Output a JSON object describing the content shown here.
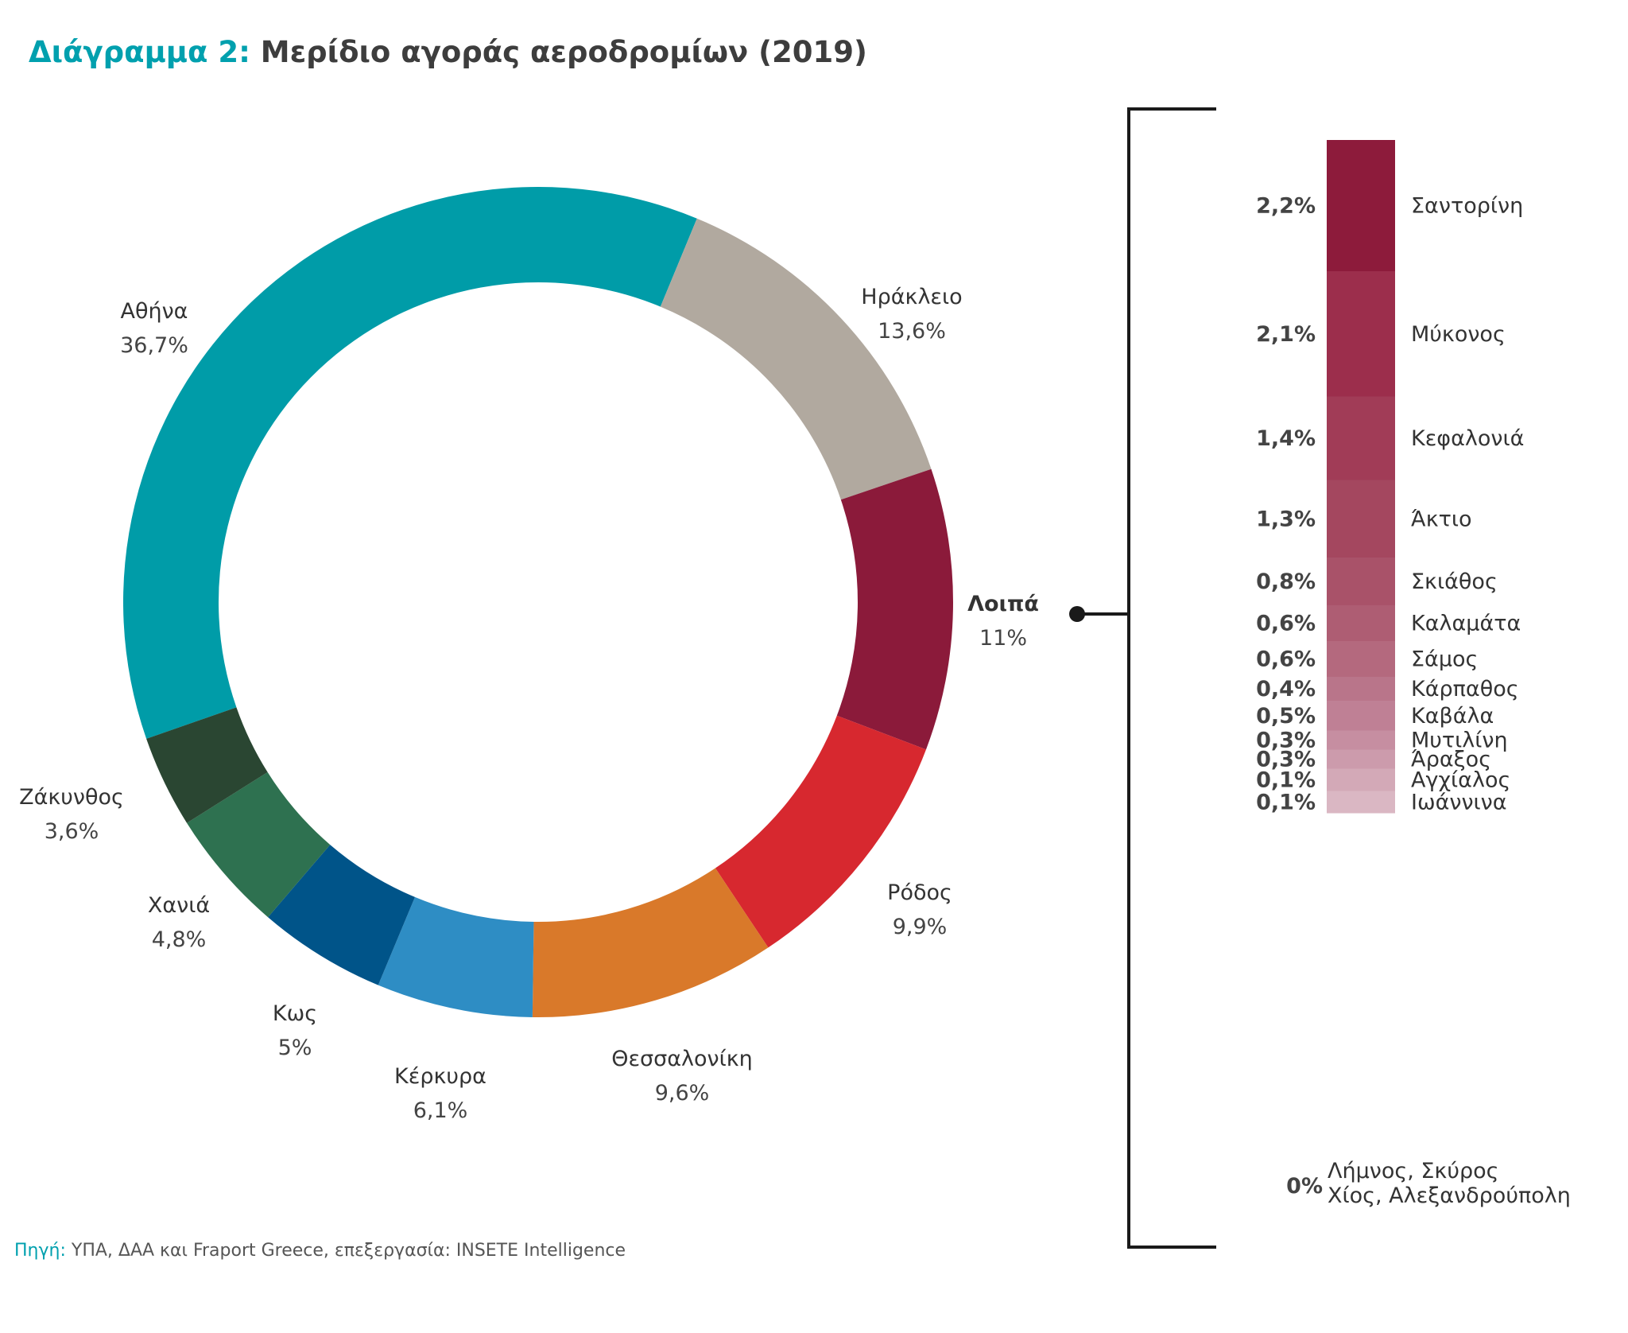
{
  "title_lead": "Διάγραμμα 2:",
  "title_main": "Μερίδιο αγοράς αεροδρομίων (2019)",
  "source_lead": "Πηγή:",
  "source_text": "ΥΠΑ, ΔΑΑ και Fraport Greece, επεξεργασία: INSETE Intelligence",
  "chart_data": [
    {
      "type": "pie",
      "title": "Μερίδιο αγοράς αεροδρομίων (2019)",
      "slices": [
        {
          "label": "Αθήνα",
          "value_label": "36,7%",
          "value": 36.7,
          "color": "#009ca8"
        },
        {
          "label": "Ηράκλειο",
          "value_label": "13,6%",
          "value": 13.6,
          "color": "#b1a99f"
        },
        {
          "label": "Λοιπά",
          "value_label": "11%",
          "value": 11,
          "color": "#8b1a3a",
          "bold": true
        },
        {
          "label": "Ρόδος",
          "value_label": "9,9%",
          "value": 9.9,
          "color": "#d7282f"
        },
        {
          "label": "Θεσσαλονίκη",
          "value_label": "9,6%",
          "value": 9.6,
          "color": "#d9792a"
        },
        {
          "label": "Κέρκυρα",
          "value_label": "6,1%",
          "value": 6.1,
          "color": "#2e8dc4"
        },
        {
          "label": "Κως",
          "value_label": "5%",
          "value": 5,
          "color": "#005489"
        },
        {
          "label": "Χανιά",
          "value_label": "4,8%",
          "value": 4.8,
          "color": "#2e7150"
        },
        {
          "label": "Ζάκυνθος",
          "value_label": "3,6%",
          "value": 3.6,
          "color": "#2a4632"
        }
      ]
    },
    {
      "type": "bar",
      "stacked": true,
      "title": "Λοιπά",
      "segments": [
        {
          "label": "Σαντορίνη",
          "value_label": "2,2%",
          "value": 2.2,
          "color": "#8d1b3b"
        },
        {
          "label": "Μύκονος",
          "value_label": "2,1%",
          "value": 2.1,
          "color": "#9c2e4c"
        },
        {
          "label": "Κεφαλονιά",
          "value_label": "1,4%",
          "value": 1.4,
          "color": "#a13c57"
        },
        {
          "label": "Άκτιο",
          "value_label": "1,3%",
          "value": 1.3,
          "color": "#a4475f"
        },
        {
          "label": "Σκιάθος",
          "value_label": "0,8%",
          "value": 0.8,
          "color": "#a95269"
        },
        {
          "label": "Καλαμάτα",
          "value_label": "0,6%",
          "value": 0.6,
          "color": "#ae5d73"
        },
        {
          "label": "Σάμος",
          "value_label": "0,6%",
          "value": 0.6,
          "color": "#b4697e"
        },
        {
          "label": "Κάρπαθος",
          "value_label": "0,4%",
          "value": 0.4,
          "color": "#b9758a"
        },
        {
          "label": "Καβάλα",
          "value_label": "0,5%",
          "value": 0.5,
          "color": "#bf8095"
        },
        {
          "label": "Μυτιλίνη",
          "value_label": "0,3%",
          "value": 0.3,
          "color": "#c68ea1"
        },
        {
          "label": "Άραξος",
          "value_label": "0,3%",
          "value": 0.3,
          "color": "#cc9bac"
        },
        {
          "label": "Αγχίαλος",
          "value_label": "0,1%",
          "value": 0.1,
          "color": "#d3a9b7"
        },
        {
          "label": "Ιωάννινα",
          "value_label": "0,1%",
          "value": 0.1,
          "color": "#dab7c3"
        }
      ],
      "zero_group": {
        "value_label": "0%",
        "lines": [
          "Λήμνος, Σκύρος",
          "Χίος, Αλεξανδρούπολη"
        ]
      }
    }
  ]
}
